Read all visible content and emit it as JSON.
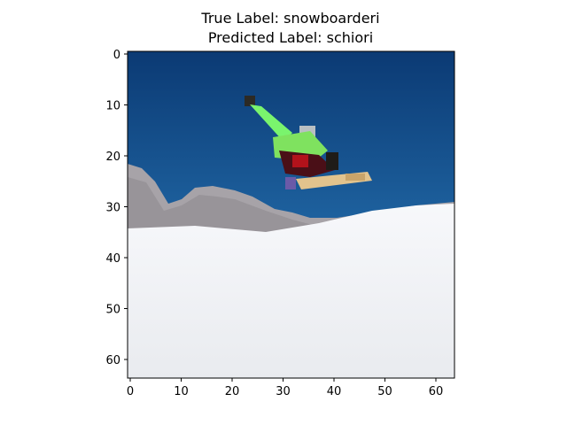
{
  "title": {
    "line1": "True Label: snowboarderi",
    "line2": "Predicted Label: schiori"
  },
  "axes": {
    "x_ticks": [
      0,
      10,
      20,
      30,
      40,
      50,
      60
    ],
    "y_ticks": [
      0,
      10,
      20,
      30,
      40,
      50,
      60
    ],
    "xlim": [
      -0.5,
      63.5
    ],
    "ylim": [
      63.5,
      -0.5
    ]
  },
  "image": {
    "subject": "snowboarder mid-air over snowy mountain",
    "colors": {
      "sky_top": "#0d3f7a",
      "sky_bottom": "#2a7bbd",
      "rock": "#a9a3a6",
      "snow": "#f1f2f5",
      "jacket": "#6df16a",
      "pants": "#3a0d12",
      "board": "#e8c69a"
    }
  }
}
